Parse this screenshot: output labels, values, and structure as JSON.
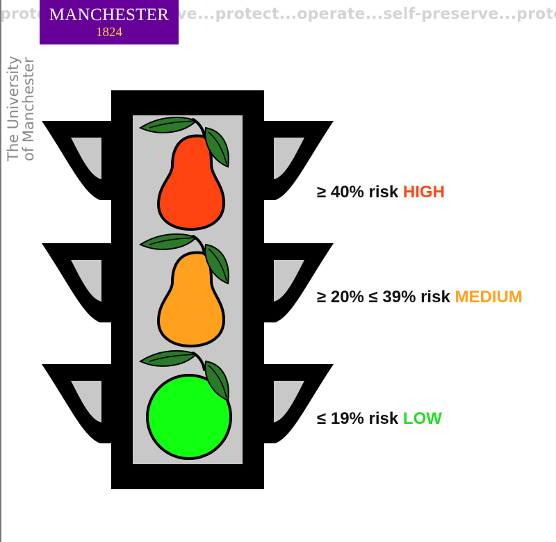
{
  "banner": {
    "text": "protect...self-preserve...protect...operate...self-preserve...protect"
  },
  "logo": {
    "name": "MANCHESTER",
    "year": "1824",
    "bg_color": "#660099",
    "year_color": "#ffcc33"
  },
  "side_text": {
    "line1": "The University",
    "line2": "of Manchester"
  },
  "traffic_light": {
    "frame_color": "#000000",
    "panel_color": "#c8c8c8",
    "lights": [
      {
        "name": "high",
        "shape": "pear",
        "color": "#ff4411"
      },
      {
        "name": "medium",
        "shape": "pear",
        "color": "#ffa11e"
      },
      {
        "name": "low",
        "shape": "apple",
        "color": "#11ff11"
      }
    ]
  },
  "risk_levels": [
    {
      "range": "≥ 40% risk",
      "level": "HIGH",
      "color": "#ff4411"
    },
    {
      "range": "≥ 20% ≤ 39% risk",
      "level": "MEDIUM",
      "color": "#ffa11e"
    },
    {
      "range": "≤ 19% risk",
      "level": "LOW",
      "color": "#22dd22"
    }
  ]
}
